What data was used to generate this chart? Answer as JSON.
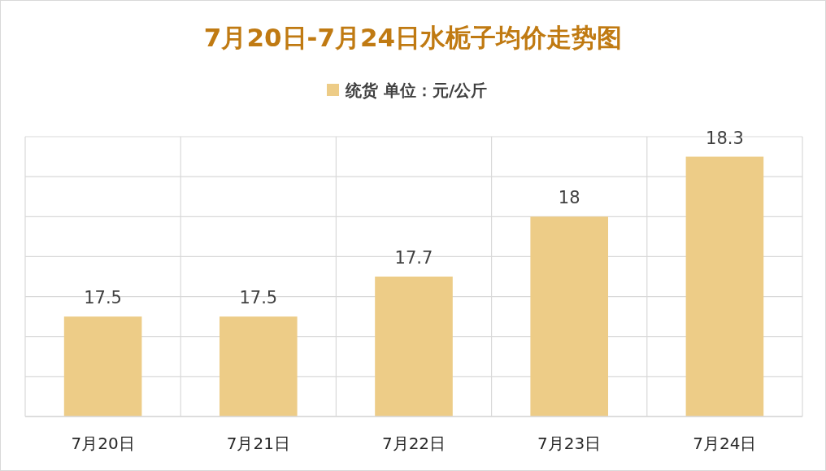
{
  "chart_data": {
    "type": "bar",
    "title": "7月20日-7月24日水栀子均价走势图",
    "categories": [
      "7月20日",
      "7月21日",
      "7月22日",
      "7月23日",
      "7月24日"
    ],
    "series": [
      {
        "name": "统货 单位：元/公斤",
        "color": "#edcc87",
        "values": [
          17.5,
          17.5,
          17.7,
          18,
          18.3
        ]
      }
    ],
    "ylim": [
      17,
      18.4
    ],
    "yticks": [
      {
        "value": 17,
        "label": null
      },
      {
        "value": 17.2,
        "label": null
      },
      {
        "value": 17.4,
        "label": null
      },
      {
        "value": 17.6,
        "label": null
      },
      {
        "value": 17.8,
        "label": null
      },
      {
        "value": 18,
        "label": null
      },
      {
        "value": 18.2,
        "label": null
      },
      {
        "value": 18.4,
        "label": null
      }
    ],
    "tick_labels": "x",
    "grid": true,
    "legend": "top",
    "data_labels": true
  }
}
